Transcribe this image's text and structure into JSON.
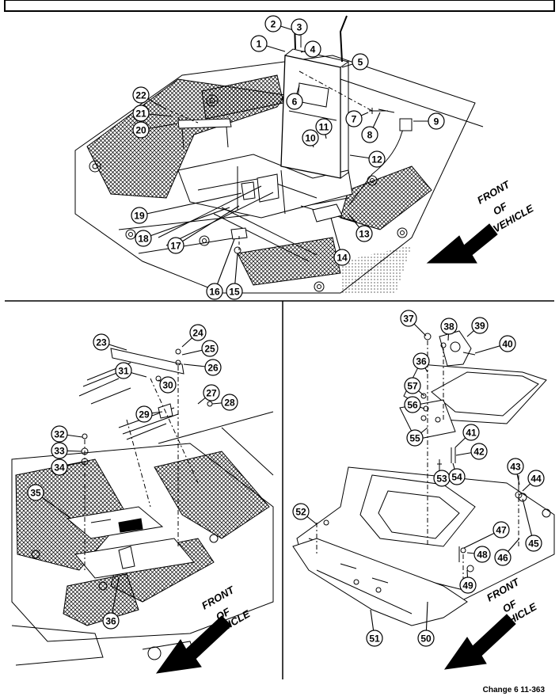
{
  "figure": {
    "front_label": [
      "FRONT",
      "OF",
      "VEHICLE"
    ],
    "footer_text": "Change 6 11-363",
    "callouts": [
      "1",
      "2",
      "3",
      "4",
      "5",
      "6",
      "7",
      "8",
      "9",
      "10",
      "11",
      "12",
      "13",
      "14",
      "15",
      "16",
      "17",
      "18",
      "19",
      "20",
      "21",
      "22",
      "23",
      "24",
      "25",
      "26",
      "27",
      "28",
      "29",
      "30",
      "31",
      "32",
      "33",
      "34",
      "35",
      "36",
      "37",
      "38",
      "39",
      "40",
      "41",
      "42",
      "43",
      "44",
      "45",
      "46",
      "47",
      "48",
      "49",
      "50",
      "51",
      "52",
      "53",
      "54",
      "55",
      "56",
      "57",
      "36"
    ]
  }
}
